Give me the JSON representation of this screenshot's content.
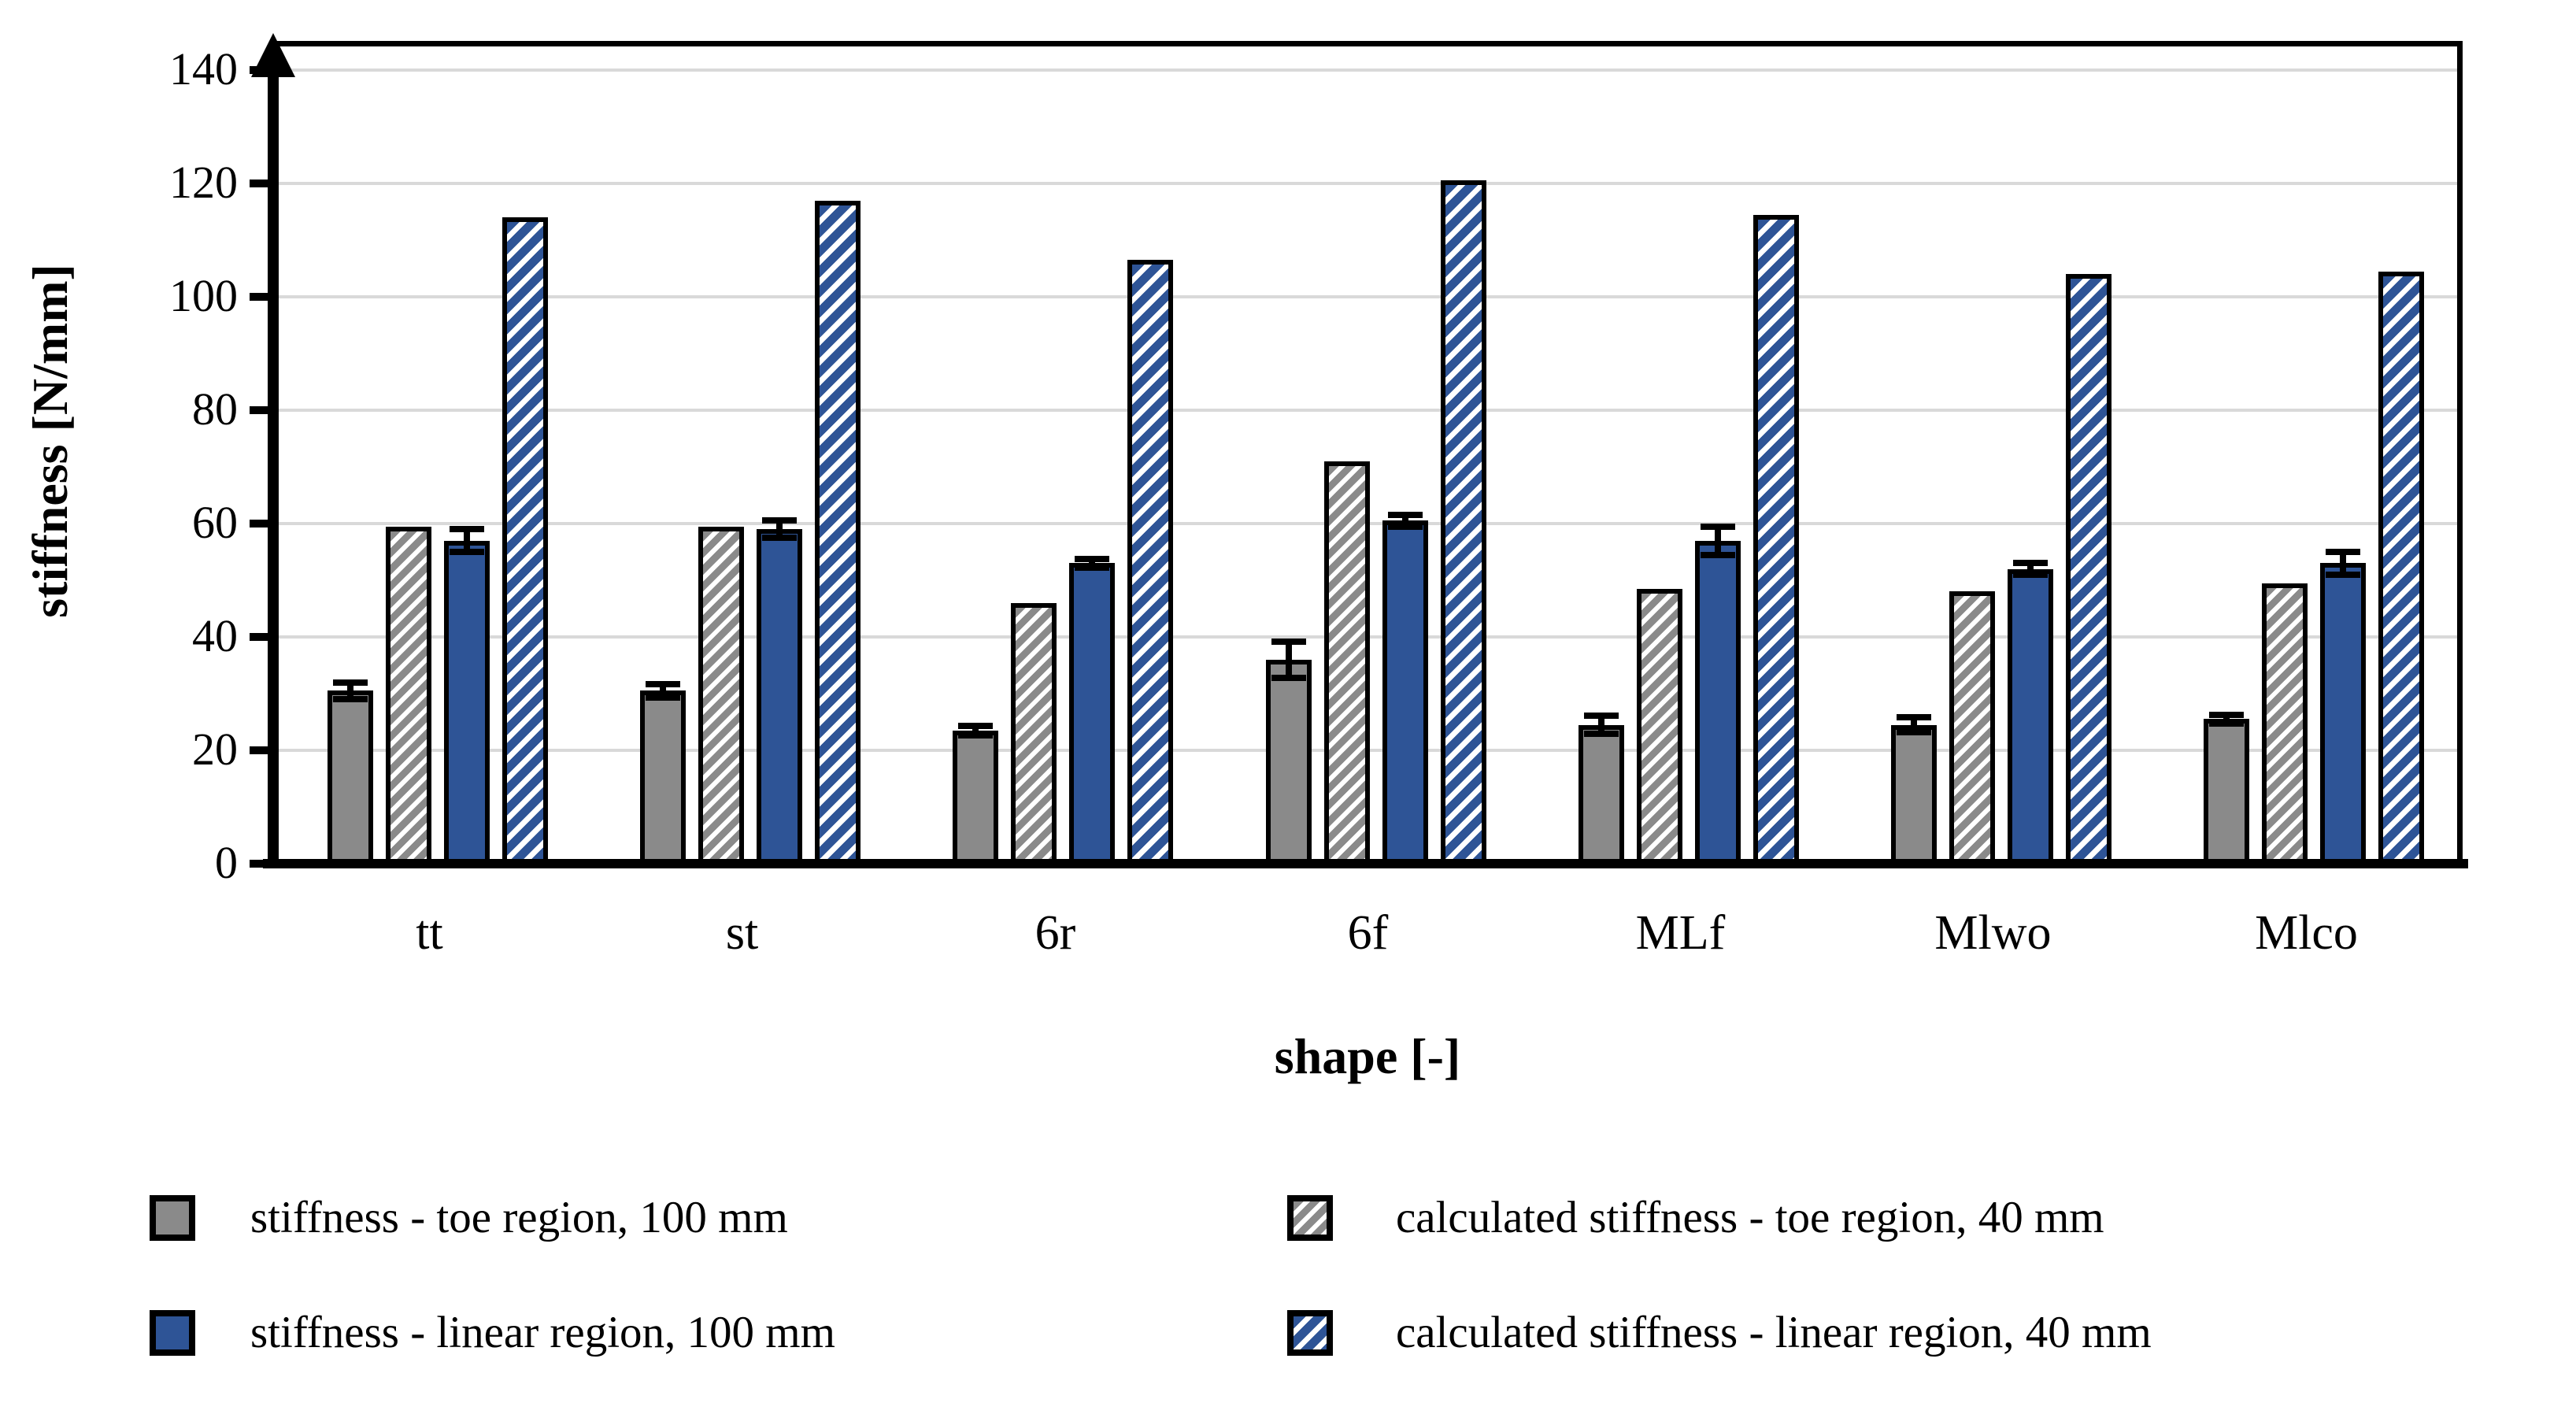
{
  "figure": {
    "background": "#ffffff",
    "accent_colors": {
      "gray": "#8a8a8a",
      "blue": "#2e5496",
      "gridline": "#d9d9d9",
      "axis": "#000000"
    }
  },
  "chart_data": {
    "type": "bar",
    "title": "",
    "xlabel": "shape [-]",
    "ylabel": "stiffness [N/mm]",
    "ylim": [
      0,
      140
    ],
    "yticks": [
      0,
      20,
      40,
      60,
      80,
      100,
      120,
      140
    ],
    "grid": true,
    "y_axis_arrow": true,
    "legend_position": "below chart, two columns",
    "categories": [
      "tt",
      "st",
      "6r",
      "6f",
      "MLf",
      "Mlwo",
      "Mlco"
    ],
    "series": [
      {
        "name": "stiffness - toe region, 100 mm",
        "style": "solid-gray",
        "color": "#8a8a8a",
        "values": [
          30.5,
          30.5,
          23.5,
          36,
          24.5,
          24.5,
          25.5
        ],
        "errors": [
          1.5,
          1.2,
          0.8,
          3.2,
          1.6,
          1.3,
          0.8
        ]
      },
      {
        "name": "calculated stiffness - toe region, 40 mm",
        "style": "hatch-gray",
        "color": "#8a8a8a",
        "values": [
          59.5,
          59.5,
          46,
          71,
          48.5,
          48,
          49.5
        ],
        "errors": null
      },
      {
        "name": "stiffness - linear region, 100 mm",
        "style": "solid-blue",
        "color": "#2e5496",
        "values": [
          57,
          59,
          53,
          60.5,
          57,
          52,
          53
        ],
        "errors": [
          2,
          1.5,
          0.8,
          1,
          2.5,
          1,
          2
        ]
      },
      {
        "name": "calculated stiffness - linear region, 40 mm",
        "style": "hatch-blue",
        "color": "#2e5496",
        "values": [
          114,
          117,
          106.5,
          120.5,
          114.5,
          104,
          104.5
        ],
        "errors": null
      }
    ]
  }
}
